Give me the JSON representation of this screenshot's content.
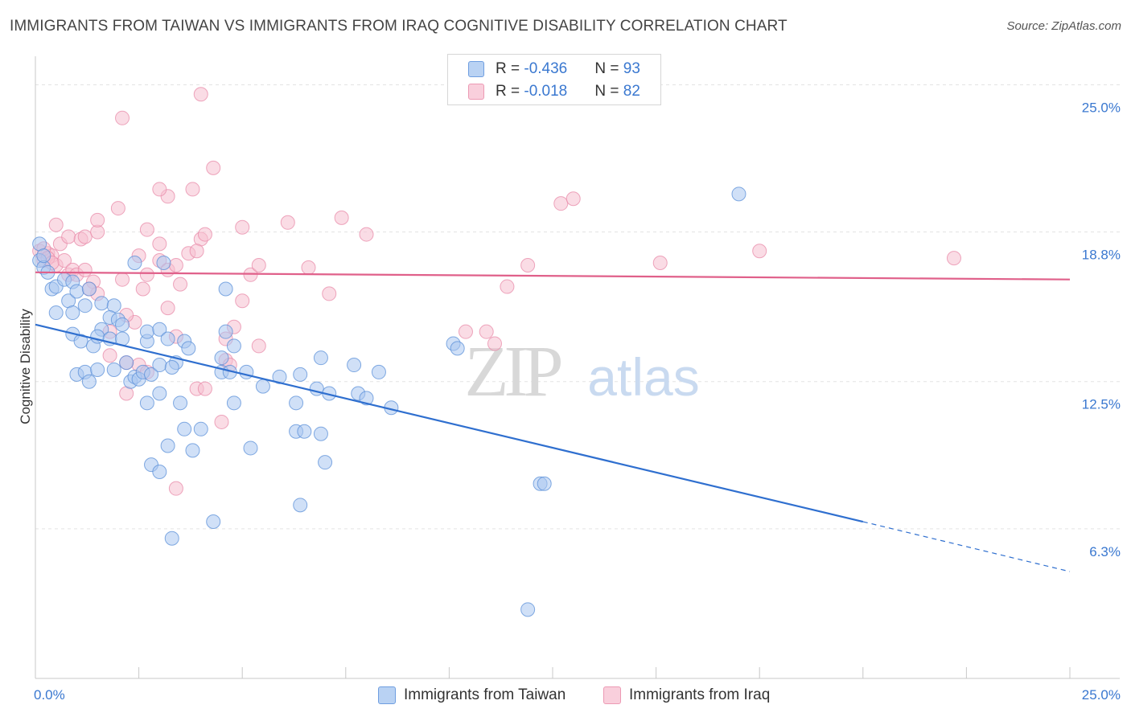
{
  "title": "IMMIGRANTS FROM TAIWAN VS IMMIGRANTS FROM IRAQ COGNITIVE DISABILITY CORRELATION CHART",
  "source": "Source: ZipAtlas.com",
  "watermark": {
    "zip": "ZIP",
    "atlas": "atlas"
  },
  "legend": {
    "taiwan": {
      "r_label": "R = ",
      "r_value": "-0.436",
      "n_label": "N = ",
      "n_value": "93"
    },
    "iraq": {
      "r_label": "R = ",
      "r_value": "-0.018",
      "n_label": "N = ",
      "n_value": "82"
    }
  },
  "bottom_legend": {
    "taiwan": "Immigrants from Taiwan",
    "iraq": "Immigrants from Iraq"
  },
  "colors": {
    "taiwan_fill": "#a9c7f0",
    "taiwan_stroke": "#5a8fd8",
    "taiwan_line": "#2f6fcf",
    "iraq_fill": "#f6bfd0",
    "iraq_stroke": "#e88aa8",
    "iraq_line": "#e0608a",
    "tick_text": "#3a78d0",
    "grid": "#e3e3e3"
  },
  "chart_data": {
    "type": "scatter",
    "title": "IMMIGRANTS FROM TAIWAN VS IMMIGRANTS FROM IRAQ COGNITIVE DISABILITY CORRELATION CHART",
    "xlabel": "",
    "ylabel": "Cognitive Disability",
    "xlim": [
      0,
      25
    ],
    "ylim": [
      0,
      26.2
    ],
    "x_tick_labels": [
      "0.0%",
      "25.0%"
    ],
    "y_ticks": [
      6.3,
      12.5,
      18.8,
      25.0
    ],
    "y_tick_labels": [
      "6.3%",
      "12.5%",
      "18.8%",
      "25.0%"
    ],
    "grid": true,
    "series": [
      {
        "name": "Immigrants from Taiwan",
        "R": -0.436,
        "N": 93,
        "trend": {
          "x0": 0,
          "y0": 14.9,
          "x1": 20.0,
          "y1": 6.6,
          "dash_to_x": 25.0,
          "dash_to_y": 4.5
        },
        "points": [
          [
            0.1,
            17.6
          ],
          [
            0.2,
            17.3
          ],
          [
            0.3,
            17.1
          ],
          [
            0.4,
            16.4
          ],
          [
            0.5,
            16.5
          ],
          [
            0.7,
            16.8
          ],
          [
            0.8,
            15.9
          ],
          [
            0.9,
            16.7
          ],
          [
            1.0,
            16.3
          ],
          [
            0.5,
            15.4
          ],
          [
            0.9,
            15.4
          ],
          [
            1.2,
            15.7
          ],
          [
            1.3,
            16.4
          ],
          [
            1.6,
            15.8
          ],
          [
            1.9,
            15.7
          ],
          [
            1.8,
            15.2
          ],
          [
            2.0,
            15.1
          ],
          [
            1.6,
            14.7
          ],
          [
            2.1,
            14.9
          ],
          [
            0.9,
            14.5
          ],
          [
            1.1,
            14.2
          ],
          [
            1.4,
            14.0
          ],
          [
            1.5,
            14.4
          ],
          [
            1.8,
            14.3
          ],
          [
            2.1,
            14.3
          ],
          [
            2.7,
            14.2
          ],
          [
            2.7,
            14.6
          ],
          [
            3.0,
            14.7
          ],
          [
            3.2,
            14.3
          ],
          [
            3.6,
            14.2
          ],
          [
            1.0,
            12.8
          ],
          [
            1.2,
            12.9
          ],
          [
            1.3,
            12.5
          ],
          [
            1.5,
            13.0
          ],
          [
            1.9,
            13.0
          ],
          [
            2.2,
            13.3
          ],
          [
            2.3,
            12.5
          ],
          [
            2.4,
            12.7
          ],
          [
            2.5,
            12.6
          ],
          [
            2.6,
            12.9
          ],
          [
            2.8,
            12.8
          ],
          [
            3.0,
            13.2
          ],
          [
            3.4,
            13.3
          ],
          [
            3.0,
            12.0
          ],
          [
            3.3,
            13.1
          ],
          [
            2.7,
            11.6
          ],
          [
            3.5,
            11.6
          ],
          [
            4.5,
            12.9
          ],
          [
            4.7,
            12.9
          ],
          [
            4.5,
            13.5
          ],
          [
            5.1,
            12.9
          ],
          [
            4.8,
            11.6
          ],
          [
            3.7,
            13.9
          ],
          [
            4.8,
            14.0
          ],
          [
            4.6,
            14.6
          ],
          [
            5.5,
            12.3
          ],
          [
            5.9,
            12.7
          ],
          [
            6.3,
            11.6
          ],
          [
            6.4,
            12.8
          ],
          [
            6.8,
            12.2
          ],
          [
            7.1,
            12.0
          ],
          [
            6.9,
            13.5
          ],
          [
            7.7,
            13.2
          ],
          [
            7.8,
            12.0
          ],
          [
            8.0,
            11.8
          ],
          [
            8.3,
            12.9
          ],
          [
            8.6,
            11.4
          ],
          [
            10.1,
            14.1
          ],
          [
            10.2,
            13.9
          ],
          [
            3.6,
            10.5
          ],
          [
            4.0,
            10.5
          ],
          [
            4.6,
            16.4
          ],
          [
            3.1,
            17.5
          ],
          [
            2.4,
            17.5
          ],
          [
            3.2,
            9.8
          ],
          [
            3.8,
            9.6
          ],
          [
            5.2,
            9.7
          ],
          [
            6.3,
            10.4
          ],
          [
            6.5,
            10.4
          ],
          [
            6.9,
            10.3
          ],
          [
            7.0,
            9.1
          ],
          [
            2.8,
            9.0
          ],
          [
            3.0,
            8.7
          ],
          [
            12.2,
            8.2
          ],
          [
            12.3,
            8.2
          ],
          [
            6.4,
            7.3
          ],
          [
            4.3,
            6.6
          ],
          [
            3.3,
            5.9
          ],
          [
            11.9,
            2.9
          ],
          [
            17.0,
            20.4
          ],
          [
            0.1,
            18.3
          ],
          [
            0.2,
            17.8
          ]
        ]
      },
      {
        "name": "Immigrants from Iraq",
        "R": -0.018,
        "N": 82,
        "trend": {
          "x0": 0,
          "y0": 17.1,
          "x1": 25.0,
          "y1": 16.8
        },
        "points": [
          [
            0.1,
            18.0
          ],
          [
            0.2,
            17.6
          ],
          [
            0.3,
            17.9
          ],
          [
            0.4,
            17.8
          ],
          [
            0.5,
            17.4
          ],
          [
            0.6,
            18.3
          ],
          [
            0.7,
            17.6
          ],
          [
            0.8,
            17.0
          ],
          [
            0.9,
            17.2
          ],
          [
            1.0,
            17.0
          ],
          [
            0.5,
            19.1
          ],
          [
            0.8,
            18.6
          ],
          [
            1.1,
            18.5
          ],
          [
            1.2,
            18.6
          ],
          [
            1.5,
            18.8
          ],
          [
            1.5,
            19.3
          ],
          [
            2.0,
            19.8
          ],
          [
            2.7,
            18.9
          ],
          [
            3.0,
            18.3
          ],
          [
            2.5,
            17.8
          ],
          [
            1.2,
            17.2
          ],
          [
            1.4,
            16.7
          ],
          [
            1.5,
            16.2
          ],
          [
            1.3,
            16.4
          ],
          [
            2.1,
            16.8
          ],
          [
            2.7,
            17.0
          ],
          [
            2.6,
            16.4
          ],
          [
            3.0,
            17.6
          ],
          [
            3.2,
            17.2
          ],
          [
            3.4,
            17.4
          ],
          [
            3.7,
            17.9
          ],
          [
            4.0,
            18.5
          ],
          [
            3.9,
            18.0
          ],
          [
            3.5,
            16.6
          ],
          [
            3.2,
            15.6
          ],
          [
            4.1,
            18.7
          ],
          [
            5.0,
            19.0
          ],
          [
            5.2,
            17.0
          ],
          [
            5.0,
            15.9
          ],
          [
            5.4,
            17.4
          ],
          [
            6.1,
            19.2
          ],
          [
            6.6,
            17.3
          ],
          [
            7.1,
            16.2
          ],
          [
            7.4,
            19.4
          ],
          [
            8.0,
            18.7
          ],
          [
            10.4,
            14.6
          ],
          [
            10.9,
            14.6
          ],
          [
            11.1,
            14.1
          ],
          [
            11.4,
            16.5
          ],
          [
            11.9,
            17.4
          ],
          [
            15.1,
            17.5
          ],
          [
            22.2,
            17.7
          ],
          [
            2.4,
            15.0
          ],
          [
            2.2,
            15.3
          ],
          [
            1.8,
            14.6
          ],
          [
            4.8,
            14.8
          ],
          [
            4.6,
            14.3
          ],
          [
            3.4,
            14.4
          ],
          [
            5.4,
            14.0
          ],
          [
            1.8,
            13.6
          ],
          [
            2.2,
            13.3
          ],
          [
            2.5,
            13.2
          ],
          [
            2.7,
            12.9
          ],
          [
            4.6,
            13.4
          ],
          [
            4.7,
            13.2
          ],
          [
            3.9,
            12.2
          ],
          [
            4.1,
            12.2
          ],
          [
            2.2,
            12.0
          ],
          [
            4.5,
            10.8
          ],
          [
            3.4,
            8.0
          ],
          [
            3.8,
            20.6
          ],
          [
            3.2,
            20.3
          ],
          [
            3.0,
            20.6
          ],
          [
            4.3,
            21.5
          ],
          [
            12.7,
            20.0
          ],
          [
            13.0,
            20.2
          ],
          [
            2.1,
            23.6
          ],
          [
            4.0,
            24.6
          ],
          [
            17.5,
            18.0
          ],
          [
            0.2,
            18.1
          ],
          [
            0.3,
            17.7
          ],
          [
            0.4,
            17.5
          ]
        ]
      }
    ]
  }
}
